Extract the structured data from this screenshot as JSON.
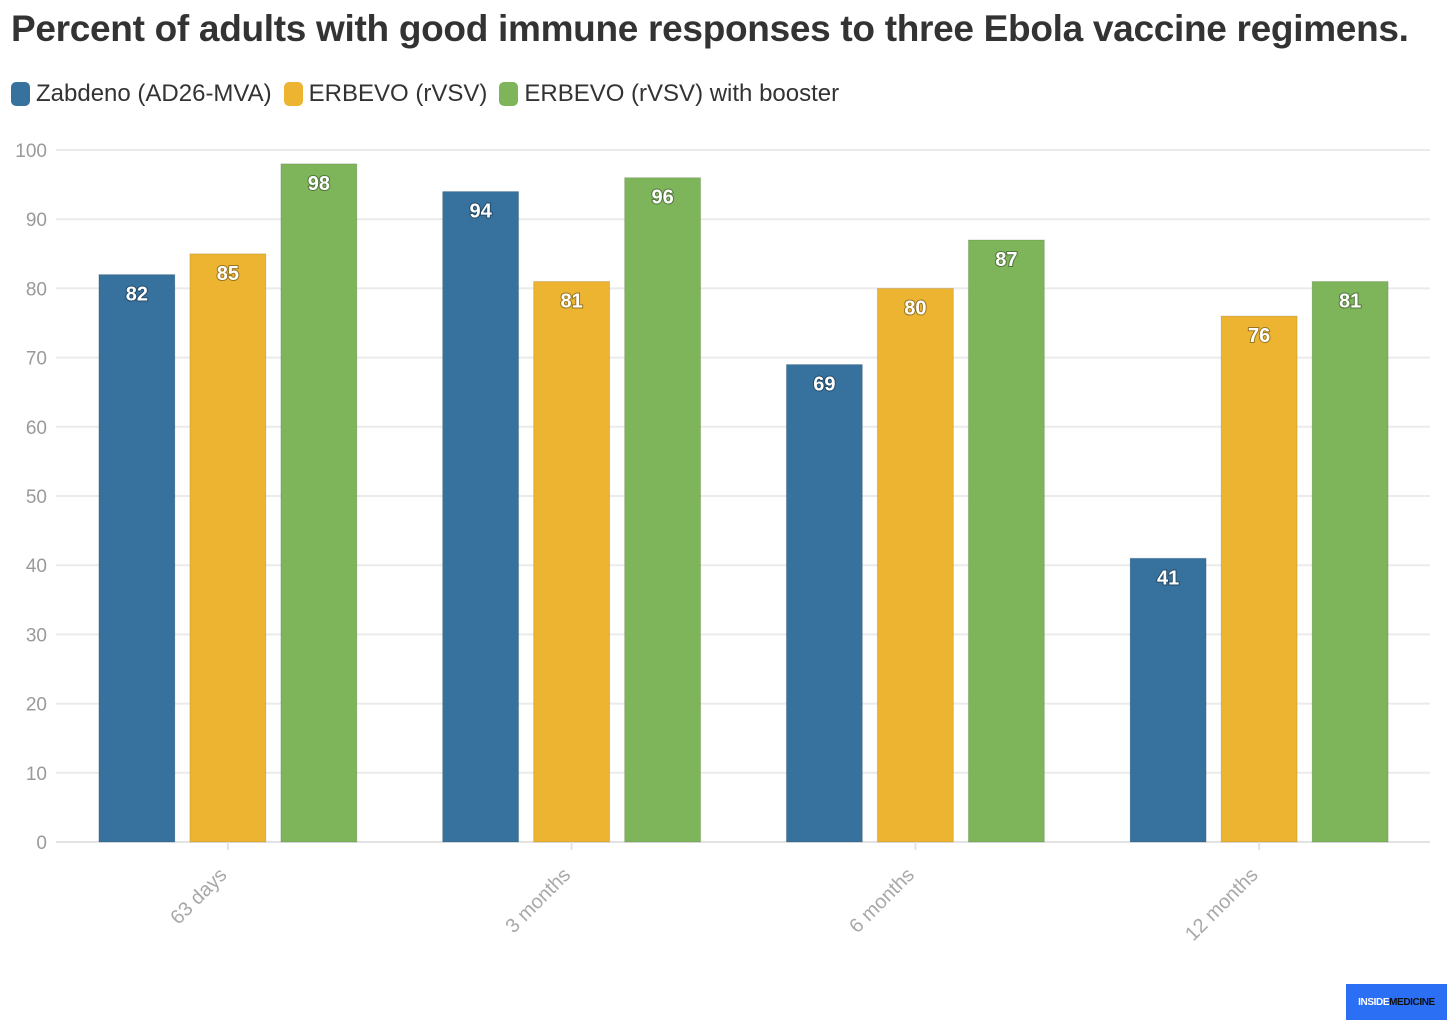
{
  "chart_data": {
    "type": "bar",
    "title": "Percent of adults with good immune responses to three Ebola vaccine regimens.",
    "categories": [
      "63 days",
      "3 months",
      "6 months",
      "12 months"
    ],
    "series": [
      {
        "name": "Zabdeno (AD26-MVA)",
        "color": "#37729f",
        "values": [
          82,
          94,
          69,
          41
        ]
      },
      {
        "name": "ERBEVO (rVSV)",
        "color": "#ecb431",
        "values": [
          85,
          81,
          80,
          76
        ]
      },
      {
        "name": "ERBEVO (rVSV) with booster",
        "color": "#7eb55a",
        "values": [
          98,
          96,
          87,
          81
        ]
      }
    ],
    "ylim": [
      0,
      100
    ],
    "yticks": [
      0,
      10,
      20,
      30,
      40,
      50,
      60,
      70,
      80,
      90,
      100
    ],
    "grid": true,
    "legend_position": "top-left",
    "data_labels": true
  },
  "branding": {
    "part1": "INSIDE",
    "part2": "MEDICINE"
  }
}
